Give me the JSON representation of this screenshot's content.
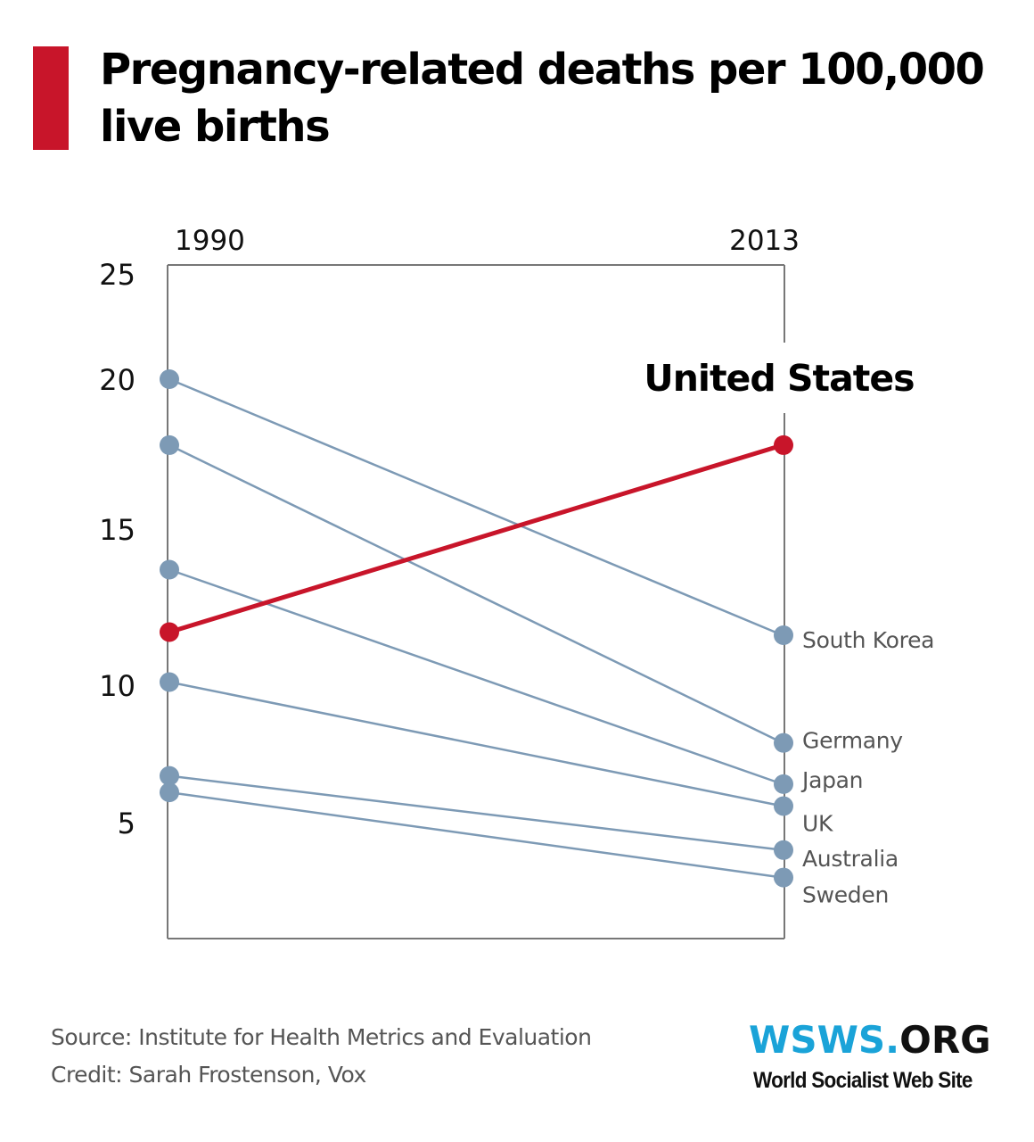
{
  "title": "Pregnancy-related deaths per 100,000 live births",
  "colors": {
    "accent": "#c8152a",
    "series": "#7d9ab5",
    "axis": "#777777",
    "label": "#555555",
    "logo_blue": "#1aa3d8"
  },
  "footer": {
    "source": "Source: Institute for Health Metrics and Evaluation",
    "credit": "Credit: Sarah Frostenson, Vox"
  },
  "logo": {
    "wsws": "WSWS.",
    "org": "ORG",
    "tagline": "World Socialist Web Site"
  },
  "chart_data": {
    "type": "line",
    "subtype": "slope",
    "title": "Pregnancy-related deaths per 100,000 live births",
    "x": [
      "1990",
      "2013"
    ],
    "xlabel": "",
    "ylabel": "",
    "yticks": [
      "25",
      "20",
      "15",
      "10",
      "5"
    ],
    "ylim": [
      0.8,
      25
    ],
    "grid": false,
    "highlight": "United States",
    "series": [
      {
        "name": "South Korea",
        "values": [
          20.0,
          11.6
        ],
        "highlight": false
      },
      {
        "name": "Germany",
        "values": [
          17.8,
          7.9
        ],
        "highlight": false
      },
      {
        "name": "Japan",
        "values": [
          13.7,
          6.4
        ],
        "highlight": false
      },
      {
        "name": "UK",
        "values": [
          10.1,
          5.6
        ],
        "highlight": false
      },
      {
        "name": "Australia",
        "values": [
          6.7,
          4.0
        ],
        "highlight": false
      },
      {
        "name": "Sweden",
        "values": [
          6.1,
          3.0
        ],
        "highlight": false
      },
      {
        "name": "United States",
        "values": [
          11.7,
          17.8
        ],
        "highlight": true
      }
    ]
  }
}
